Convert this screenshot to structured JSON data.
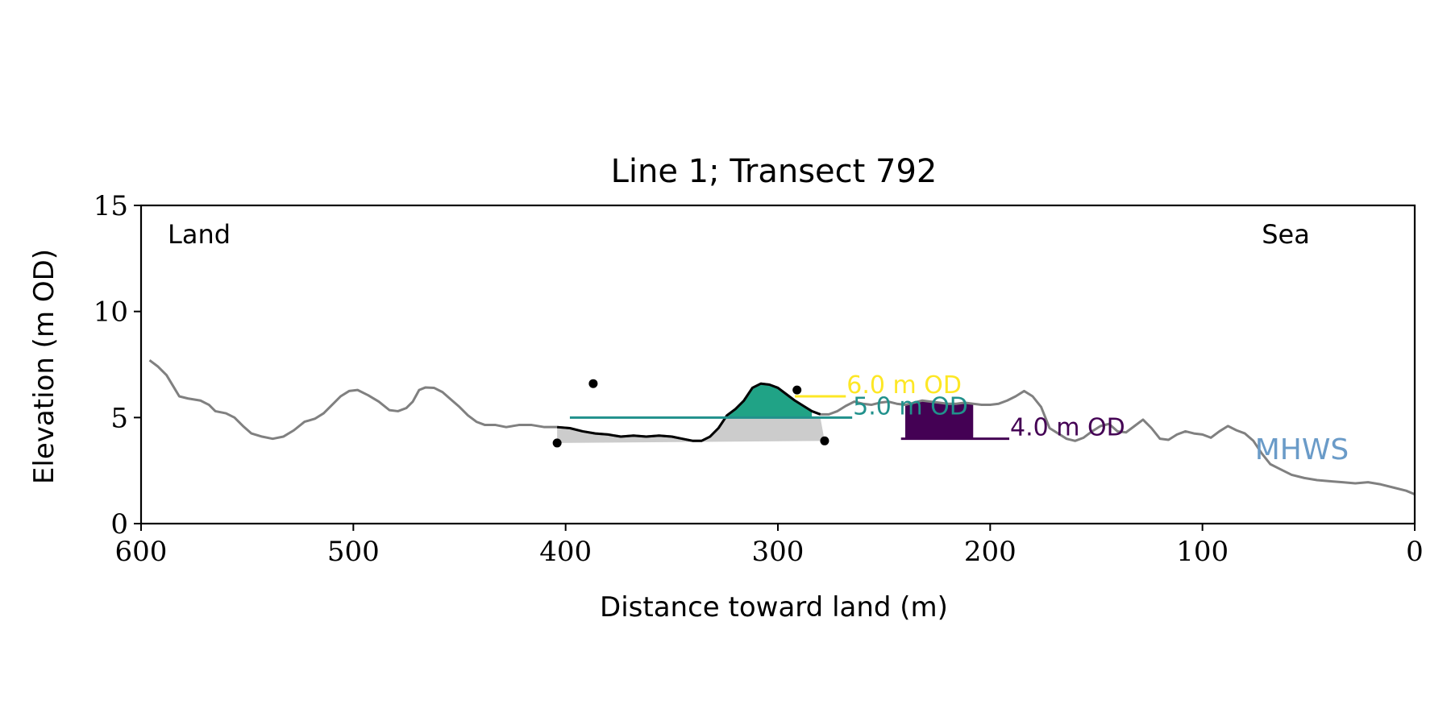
{
  "chart_data": {
    "type": "line",
    "title": "Line 1; Transect 792",
    "xlabel": "Distance toward land (m)",
    "ylabel": "Elevation (m OD)",
    "xlim": [
      600,
      0
    ],
    "ylim": [
      0,
      15
    ],
    "x_ticks": [
      600,
      500,
      400,
      300,
      200,
      100,
      0
    ],
    "y_ticks": [
      0,
      5,
      10,
      15
    ],
    "grid": false,
    "corner_labels": {
      "left": "Land",
      "right": "Sea"
    },
    "mhws_label": "MHWS",
    "mhws_level": 2.5,
    "mhws_x_range": [
      200,
      125
    ],
    "colors": {
      "profile": "#808080",
      "dune": "#000000",
      "dune_base": "#cccccc",
      "level_6": "#fde725",
      "level_5": "#21918c",
      "level_4": "#440154",
      "fill_5": "#20a386",
      "fill_4": "#440154",
      "mhws": "#9ecaff",
      "mhws_text": "#6a9bc8"
    },
    "levels": [
      {
        "label": "6.0 m OD",
        "value": 6.0,
        "x_range": [
          292,
          268
        ],
        "color": "#fde725"
      },
      {
        "label": "5.0 m OD",
        "value": 5.0,
        "x_range": [
          398,
          265
        ],
        "color": "#21918c"
      },
      {
        "label": "4.0 m OD",
        "value": 4.0,
        "x_range": [
          242,
          191
        ],
        "color": "#440154"
      }
    ],
    "dune_points": [
      {
        "x": 404,
        "y": 3.8
      },
      {
        "x": 387,
        "y": 6.6
      },
      {
        "x": 291,
        "y": 6.3
      },
      {
        "x": 278,
        "y": 3.9
      }
    ],
    "dune_base": [
      [
        404,
        3.8
      ],
      [
        278,
        3.9
      ]
    ],
    "profile": [
      [
        596,
        7.7
      ],
      [
        592,
        7.4
      ],
      [
        588,
        7.0
      ],
      [
        585,
        6.5
      ],
      [
        582,
        6.0
      ],
      [
        578,
        5.9
      ],
      [
        572,
        5.8
      ],
      [
        568,
        5.6
      ],
      [
        565,
        5.3
      ],
      [
        560,
        5.2
      ],
      [
        556,
        5.0
      ],
      [
        552,
        4.6
      ],
      [
        548,
        4.25
      ],
      [
        543,
        4.1
      ],
      [
        538,
        4.0
      ],
      [
        533,
        4.1
      ],
      [
        528,
        4.4
      ],
      [
        523,
        4.8
      ],
      [
        518,
        4.95
      ],
      [
        514,
        5.2
      ],
      [
        510,
        5.6
      ],
      [
        506,
        6.0
      ],
      [
        502,
        6.25
      ],
      [
        498,
        6.3
      ],
      [
        493,
        6.05
      ],
      [
        488,
        5.75
      ],
      [
        483,
        5.35
      ],
      [
        479,
        5.3
      ],
      [
        475,
        5.45
      ],
      [
        472,
        5.75
      ],
      [
        469,
        6.3
      ],
      [
        466,
        6.42
      ],
      [
        462,
        6.4
      ],
      [
        458,
        6.2
      ],
      [
        454,
        5.85
      ],
      [
        450,
        5.5
      ],
      [
        446,
        5.1
      ],
      [
        442,
        4.8
      ],
      [
        438,
        4.65
      ],
      [
        433,
        4.65
      ],
      [
        428,
        4.55
      ],
      [
        422,
        4.65
      ],
      [
        416,
        4.65
      ],
      [
        410,
        4.55
      ],
      [
        404,
        4.55
      ],
      [
        398,
        4.5
      ],
      [
        392,
        4.35
      ],
      [
        386,
        4.25
      ],
      [
        380,
        4.2
      ],
      [
        374,
        4.1
      ],
      [
        368,
        4.15
      ],
      [
        362,
        4.1
      ],
      [
        356,
        4.15
      ],
      [
        350,
        4.1
      ],
      [
        345,
        4.0
      ],
      [
        340,
        3.9
      ],
      [
        336,
        3.9
      ],
      [
        332,
        4.1
      ],
      [
        328,
        4.5
      ],
      [
        324,
        5.1
      ],
      [
        320,
        5.4
      ],
      [
        316,
        5.8
      ],
      [
        312,
        6.4
      ],
      [
        308,
        6.6
      ],
      [
        304,
        6.55
      ],
      [
        300,
        6.4
      ],
      [
        296,
        6.1
      ],
      [
        292,
        5.8
      ],
      [
        288,
        5.55
      ],
      [
        284,
        5.3
      ],
      [
        280,
        5.15
      ],
      [
        276,
        5.15
      ],
      [
        272,
        5.3
      ],
      [
        268,
        5.55
      ],
      [
        264,
        5.75
      ],
      [
        260,
        5.65
      ],
      [
        256,
        5.6
      ],
      [
        252,
        5.7
      ],
      [
        248,
        5.75
      ],
      [
        244,
        5.65
      ],
      [
        240,
        5.6
      ],
      [
        236,
        5.7
      ],
      [
        232,
        5.8
      ],
      [
        228,
        5.75
      ],
      [
        224,
        5.7
      ],
      [
        220,
        5.65
      ],
      [
        216,
        5.65
      ],
      [
        212,
        5.7
      ],
      [
        208,
        5.65
      ],
      [
        204,
        5.6
      ],
      [
        200,
        5.6
      ],
      [
        196,
        5.65
      ],
      [
        192,
        5.8
      ],
      [
        188,
        6.0
      ],
      [
        184,
        6.25
      ],
      [
        180,
        6.0
      ],
      [
        176,
        5.5
      ],
      [
        172,
        4.5
      ],
      [
        168,
        4.25
      ],
      [
        164,
        4.0
      ],
      [
        160,
        3.9
      ],
      [
        156,
        4.05
      ],
      [
        152,
        4.35
      ],
      [
        148,
        4.6
      ],
      [
        144,
        4.7
      ],
      [
        140,
        4.35
      ],
      [
        136,
        4.3
      ],
      [
        132,
        4.6
      ],
      [
        128,
        4.9
      ],
      [
        124,
        4.5
      ],
      [
        120,
        4.0
      ],
      [
        116,
        3.95
      ],
      [
        112,
        4.2
      ],
      [
        108,
        4.35
      ],
      [
        104,
        4.25
      ],
      [
        100,
        4.2
      ],
      [
        96,
        4.05
      ],
      [
        92,
        4.35
      ],
      [
        88,
        4.6
      ],
      [
        84,
        4.4
      ],
      [
        80,
        4.25
      ],
      [
        76,
        3.9
      ],
      [
        72,
        3.3
      ],
      [
        68,
        2.8
      ],
      [
        64,
        2.6
      ],
      [
        58,
        2.3
      ],
      [
        52,
        2.15
      ],
      [
        46,
        2.05
      ],
      [
        40,
        2.0
      ],
      [
        34,
        1.95
      ],
      [
        28,
        1.9
      ],
      [
        22,
        1.95
      ],
      [
        16,
        1.85
      ],
      [
        10,
        1.7
      ],
      [
        4,
        1.55
      ],
      [
        -2,
        1.3
      ],
      [
        -8,
        1.1
      ],
      [
        -14,
        0.95
      ],
      [
        -20,
        0.9
      ],
      [
        -24,
        0.75
      ],
      [
        -28,
        0.7
      ]
    ]
  }
}
